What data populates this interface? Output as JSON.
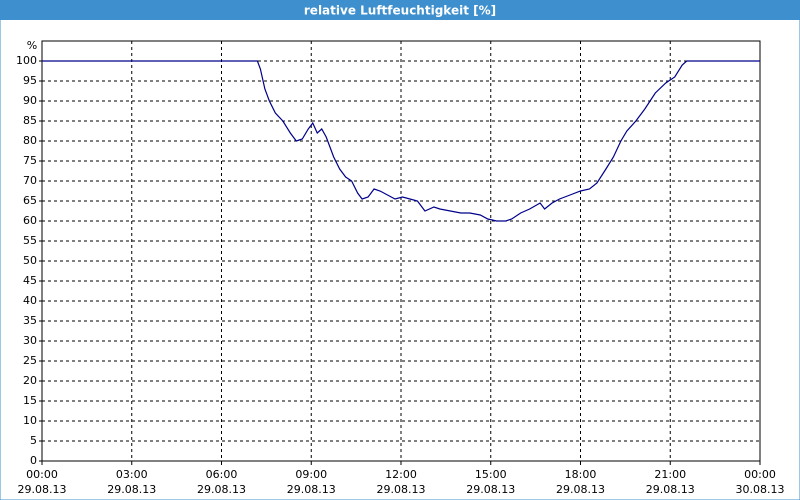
{
  "chart_data": {
    "type": "line",
    "title": "relative Luftfeuchtigkeit [%]",
    "y_label": "%",
    "x": [
      0,
      7.2,
      7.3,
      7.45,
      7.6,
      7.8,
      8.05,
      8.3,
      8.5,
      8.7,
      8.9,
      9.05,
      9.2,
      9.35,
      9.5,
      9.75,
      9.95,
      10.15,
      10.35,
      10.55,
      10.7,
      10.9,
      11.1,
      11.3,
      11.55,
      11.8,
      12.05,
      12.3,
      12.55,
      12.8,
      13.1,
      13.3,
      13.65,
      14.0,
      14.3,
      14.65,
      14.9,
      15.2,
      15.5,
      15.7,
      16.0,
      16.3,
      16.65,
      16.8,
      17.05,
      17.3,
      17.65,
      18.0,
      18.3,
      18.55,
      18.85,
      19.1,
      19.35,
      19.55,
      19.85,
      20.15,
      20.5,
      20.85,
      21.15,
      21.4,
      21.55,
      24
    ],
    "series": [
      {
        "name": "relative Luftfeuchtigkeit",
        "color": "#00008b",
        "values": [
          100,
          100,
          98,
          93,
          90,
          87,
          85,
          82,
          80,
          80.5,
          83,
          84.5,
          82,
          83,
          81,
          76,
          73,
          71,
          70,
          67,
          65.5,
          66,
          68,
          67.5,
          66.5,
          65.5,
          66,
          65.5,
          65,
          62.5,
          63.5,
          63,
          62.5,
          62,
          62,
          61.5,
          60.5,
          60,
          60,
          60.5,
          62,
          63,
          64.5,
          63,
          64.5,
          65.5,
          66.5,
          67.5,
          68,
          69.5,
          73,
          76,
          80,
          82.5,
          85,
          88,
          92,
          94.5,
          96,
          99,
          100,
          100
        ]
      }
    ],
    "xlim": [
      0,
      24
    ],
    "xticks": [
      {
        "value": 0,
        "label": "00:00 29.08.13"
      },
      {
        "value": 3,
        "label": "03:00 29.08.13"
      },
      {
        "value": 6,
        "label": "06:00 29.08.13"
      },
      {
        "value": 9,
        "label": "09:00 29.08.13"
      },
      {
        "value": 12,
        "label": "12:00 29.08.13"
      },
      {
        "value": 15,
        "label": "15:00 29.08.13"
      },
      {
        "value": 18,
        "label": "18:00 29.08.13"
      },
      {
        "value": 21,
        "label": "21:00 29.08.13"
      },
      {
        "value": 24,
        "label": "00:00 30.08.13"
      }
    ],
    "ylim": [
      0,
      100
    ],
    "yticks": [
      0,
      5,
      10,
      15,
      20,
      25,
      30,
      35,
      40,
      45,
      50,
      55,
      60,
      65,
      70,
      75,
      80,
      85,
      90,
      95,
      100
    ],
    "grid": true
  }
}
